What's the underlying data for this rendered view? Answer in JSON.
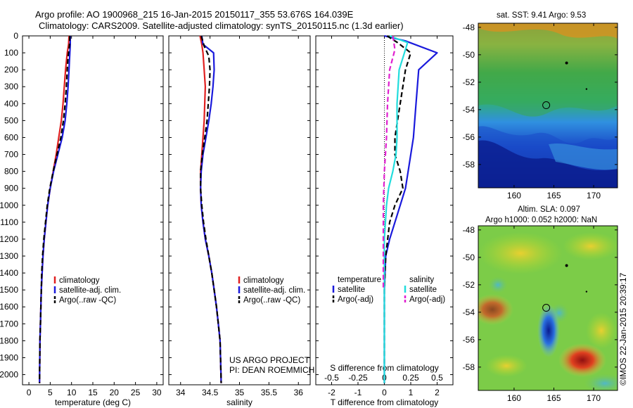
{
  "figure": {
    "title_line1": "Argo profile: AO 1900968_215 16-Jan-2015 20150117_355 53.676S 164.039E",
    "title_line2": "Climatology: CARS2009. Satellite-adjusted climatology: synTS_20150115.nc (1.3d earlier)",
    "credit": "©IMOS 22-Jan-2015 20:39:17",
    "project_line1": "US ARGO PROJECT",
    "project_line2": "PI: DEAN ROEMMICH"
  },
  "colors": {
    "climatology": "#e02020",
    "satellite": "#1a1adc",
    "argo": "#000000",
    "satellite_salinity": "#22dddd",
    "argo_salinity": "#e020d0"
  },
  "chart_data": [
    {
      "id": "temperature",
      "type": "line",
      "xlabel": "temperature (deg C)",
      "ylabel": "",
      "xlim": [
        -1.5,
        31.5
      ],
      "ylim": [
        2060,
        0
      ],
      "xticks": [
        0,
        5,
        10,
        15,
        20,
        25,
        30
      ],
      "yticks": [
        0,
        100,
        200,
        300,
        400,
        500,
        600,
        700,
        800,
        900,
        1000,
        1100,
        1200,
        1300,
        1400,
        1500,
        1600,
        1700,
        1800,
        1900,
        2000
      ],
      "legend": [
        "climatology",
        "satellite-adj. clim.",
        "Argo(..raw -QC)"
      ],
      "series": [
        {
          "name": "climatology",
          "style": "solid",
          "x": [
            9.4,
            9.3,
            9.0,
            8.6,
            8.3,
            8.0,
            7.6,
            7.0,
            6.4,
            5.7,
            5.0,
            4.4,
            4.0,
            3.6,
            3.3,
            3.1,
            2.9,
            2.8,
            2.7,
            2.6,
            2.5
          ],
          "y": [
            0,
            50,
            100,
            200,
            300,
            400,
            500,
            600,
            700,
            800,
            900,
            1000,
            1100,
            1200,
            1300,
            1400,
            1500,
            1600,
            1700,
            1800,
            2050
          ]
        },
        {
          "name": "satellite-adj. clim.",
          "style": "solid",
          "x": [
            9.7,
            9.7,
            9.6,
            9.4,
            9.2,
            8.9,
            8.5,
            7.8,
            6.8,
            5.8,
            5.0,
            4.4,
            4.0,
            3.6,
            3.3,
            3.1,
            2.9,
            2.8,
            2.7,
            2.6,
            2.5
          ],
          "y": [
            0,
            50,
            100,
            200,
            300,
            400,
            500,
            600,
            700,
            800,
            900,
            1000,
            1100,
            1200,
            1300,
            1400,
            1500,
            1600,
            1700,
            1800,
            2050
          ]
        },
        {
          "name": "Argo(..raw -QC)",
          "style": "dashed",
          "x": [
            9.6,
            9.5,
            9.2,
            9.0,
            8.8,
            8.5,
            8.1,
            7.5,
            6.6,
            5.7,
            4.9,
            4.3,
            3.9,
            3.5,
            3.2,
            3.0,
            2.9,
            2.8,
            2.7,
            2.6,
            2.5
          ],
          "y": [
            0,
            60,
            120,
            200,
            300,
            400,
            500,
            600,
            700,
            800,
            900,
            1000,
            1100,
            1200,
            1300,
            1400,
            1500,
            1600,
            1700,
            1800,
            2050
          ]
        }
      ]
    },
    {
      "id": "salinity",
      "type": "line",
      "xlabel": "salinity",
      "ylabel": "",
      "xlim": [
        33.8,
        36.2
      ],
      "ylim": [
        2060,
        0
      ],
      "xticks": [
        34,
        34.5,
        35,
        35.5,
        36
      ],
      "legend": [
        "climatology",
        "satellite-adj. clim.",
        "Argo(..raw -QC)"
      ],
      "series": [
        {
          "name": "climatology",
          "style": "solid",
          "x": [
            34.33,
            34.36,
            34.38,
            34.4,
            34.42,
            34.41,
            34.4,
            34.38,
            34.36,
            34.34,
            34.34,
            34.35,
            34.38,
            34.42,
            34.48,
            34.53,
            34.57,
            34.61,
            34.64,
            34.67,
            34.69
          ],
          "y": [
            0,
            50,
            100,
            200,
            300,
            400,
            500,
            600,
            700,
            800,
            900,
            1000,
            1100,
            1200,
            1300,
            1400,
            1500,
            1600,
            1700,
            1800,
            2050
          ]
        },
        {
          "name": "satellite-adj. clim.",
          "style": "solid",
          "x": [
            34.36,
            34.38,
            34.56,
            34.57,
            34.55,
            34.52,
            34.48,
            34.43,
            34.38,
            34.35,
            34.34,
            34.35,
            34.38,
            34.42,
            34.48,
            34.53,
            34.57,
            34.61,
            34.64,
            34.67,
            34.69
          ],
          "y": [
            0,
            50,
            100,
            200,
            300,
            400,
            500,
            600,
            700,
            800,
            900,
            1000,
            1100,
            1200,
            1300,
            1400,
            1500,
            1600,
            1700,
            1800,
            2050
          ]
        },
        {
          "name": "Argo(..raw -QC)",
          "style": "dashed",
          "x": [
            34.35,
            34.4,
            34.48,
            34.5,
            34.49,
            34.47,
            34.45,
            34.41,
            34.37,
            34.34,
            34.34,
            34.36,
            34.39,
            34.43,
            34.48,
            34.53,
            34.57,
            34.61,
            34.64,
            34.67,
            34.69
          ],
          "y": [
            0,
            60,
            120,
            200,
            300,
            400,
            500,
            600,
            700,
            800,
            900,
            1000,
            1100,
            1200,
            1300,
            1400,
            1500,
            1600,
            1700,
            1800,
            2050
          ]
        }
      ]
    },
    {
      "id": "difference",
      "type": "line",
      "xlabel": "T difference from climatology",
      "xlabel_top": "S difference from climatology",
      "ylabel": "",
      "xlim": [
        -2.6,
        2.6
      ],
      "ylim": [
        2060,
        0
      ],
      "xticks": [
        -2,
        -1,
        0,
        1,
        2
      ],
      "xticks_top": [
        -0.5,
        -0.25,
        0,
        0.25,
        0.5
      ],
      "legend_temperature_header": "temperature",
      "legend_salinity_header": "salinity",
      "legend": [
        "satellite",
        "Argo(-adj)",
        "satellite",
        "Argo(-adj)"
      ],
      "series": [
        {
          "name": "satellite",
          "quantity": "temperature",
          "style": "solid",
          "x": [
            0.0,
            0.8,
            2.0,
            1.3,
            1.2,
            1.1,
            0.9,
            0.8,
            0.6,
            0.4,
            0.2,
            0.05,
            0.0,
            0.0
          ],
          "y": [
            0,
            30,
            100,
            200,
            400,
            600,
            800,
            900,
            1000,
            1100,
            1200,
            1300,
            1500,
            2050
          ]
        },
        {
          "name": "Argo(-adj)",
          "quantity": "temperature",
          "style": "dashed",
          "x": [
            0.1,
            0.5,
            1.0,
            0.8,
            0.6,
            0.4,
            0.4,
            0.6,
            0.7,
            0.4,
            0.2,
            0.05,
            0.0,
            0.0
          ],
          "y": [
            0,
            40,
            100,
            200,
            400,
            600,
            700,
            800,
            900,
            1000,
            1100,
            1300,
            1500,
            2050
          ]
        },
        {
          "name": "satellite",
          "quantity": "salinity",
          "style": "solid",
          "x": [
            0.05,
            0.22,
            0.18,
            0.14,
            0.12,
            0.12,
            0.11,
            0.08,
            0.04,
            0.02,
            0.0,
            0.0,
            0.0
          ],
          "y": [
            0,
            40,
            120,
            200,
            400,
            600,
            700,
            800,
            900,
            1000,
            1200,
            1500,
            2050
          ]
        },
        {
          "name": "Argo(-adj)",
          "quantity": "salinity",
          "style": "dashed",
          "x": [
            0.08,
            0.1,
            0.05,
            0.03,
            0.02,
            0.0,
            -0.01,
            -0.01,
            -0.01
          ],
          "y": [
            0,
            80,
            200,
            400,
            600,
            800,
            1000,
            1200,
            1500
          ]
        }
      ]
    },
    {
      "id": "sst_map",
      "type": "heatmap",
      "title": "sat. SST: 9.41  Argo: 9.53",
      "xlim": [
        155.5,
        173
      ],
      "ylim": [
        -59.7,
        -47.7
      ],
      "xticks": [
        160,
        165,
        170
      ],
      "yticks": [
        -48,
        -50,
        -52,
        -54,
        -56,
        -58
      ],
      "marker": {
        "lon": 164.039,
        "lat": -53.676
      }
    },
    {
      "id": "sla_map",
      "type": "heatmap",
      "title_line1": "Altim. SLA: 0.097",
      "title_line2": "Argo h1000: 0.052  h2000: NaN",
      "xlim": [
        155.5,
        173
      ],
      "ylim": [
        -59.7,
        -47.7
      ],
      "xticks": [
        160,
        165,
        170
      ],
      "yticks": [
        -48,
        -50,
        -52,
        -54,
        -56,
        -58
      ],
      "marker": {
        "lon": 164.039,
        "lat": -53.676
      }
    }
  ]
}
